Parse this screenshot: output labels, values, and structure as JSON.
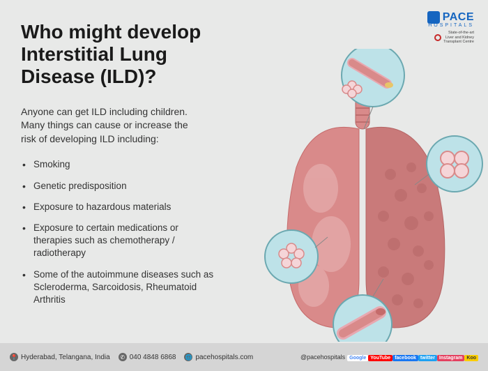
{
  "title": "Who might develop Interstitial Lung Disease (ILD)?",
  "intro": "Anyone can get ILD including children. Many things can cause or increase the risk of developing ILD including:",
  "bullets": [
    "Smoking",
    "Genetic predisposition",
    "Exposure to hazardous materials",
    "Exposure to certain medications or therapies such as chemotherapy / radiotherapy",
    "Some of the autoimmune diseases such as Scleroderma, Sarcoidosis, Rheumatoid Arthritis"
  ],
  "logo": {
    "brand": "PACE",
    "sub": "HOSPITALS",
    "tag1": "State-of-the-art",
    "tag2": "Liver and Kidney",
    "tag3": "Transplant Centre"
  },
  "footer": {
    "location": "Hyderabad, Telangana, India",
    "phone": "040 4848 6868",
    "web": "pacehospitals.com",
    "handle": "@pacehospitals"
  },
  "colors": {
    "bg": "#e8e9e8",
    "lung_main": "#d98a8a",
    "lung_dark": "#c56b6b",
    "circle_bg": "#bde2e8",
    "circle_border": "#6ba8b0",
    "tube": "#e8a8b0",
    "footer_bg": "#d5d5d5"
  },
  "social": [
    {
      "label": "Google",
      "bg": "#ffffff",
      "color": "#4285f4"
    },
    {
      "label": "YouTube",
      "bg": "#ff0000",
      "color": "#ffffff"
    },
    {
      "label": "facebook",
      "bg": "#1877f2",
      "color": "#ffffff"
    },
    {
      "label": "twitter",
      "bg": "#1da1f2",
      "color": "#ffffff"
    },
    {
      "label": "Instagram",
      "bg": "#e4405f",
      "color": "#ffffff"
    },
    {
      "label": "Koo",
      "bg": "#facd00",
      "color": "#333333"
    }
  ]
}
